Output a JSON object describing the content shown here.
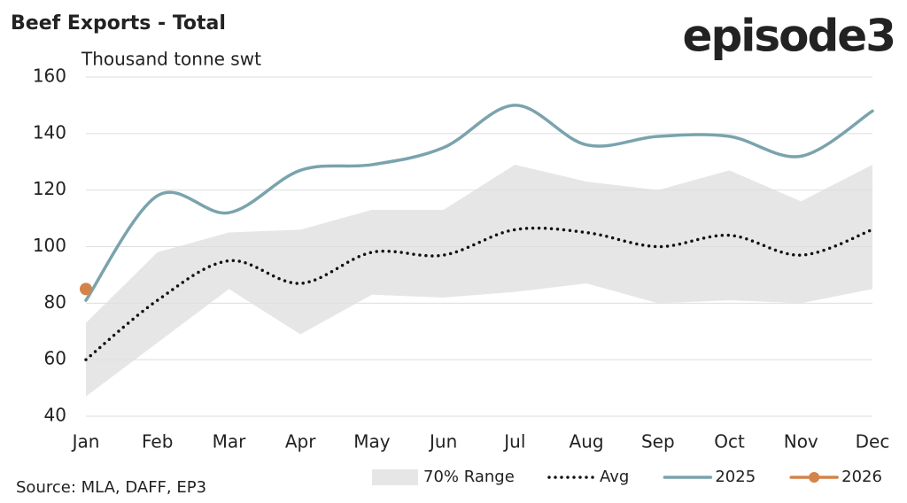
{
  "chart_data": {
    "type": "line",
    "title": "Beef Exports - Total",
    "logo": "episode3",
    "y_label": "Thousand tonne swt",
    "source": "Source: MLA, DAFF, EP3",
    "categories": [
      "Jan",
      "Feb",
      "Mar",
      "Apr",
      "May",
      "Jun",
      "Jul",
      "Aug",
      "Sep",
      "Oct",
      "Nov",
      "Dec"
    ],
    "range": {
      "name": "70% Range",
      "color": "#e6e6e6",
      "lower": [
        47,
        66,
        85,
        69,
        83,
        82,
        84,
        87,
        80,
        81,
        80,
        85
      ],
      "upper": [
        73,
        98,
        105,
        106,
        113,
        113,
        129,
        123,
        120,
        127,
        116,
        129
      ]
    },
    "series": [
      {
        "name": "Avg",
        "color": "#111111",
        "style": "dotted",
        "values": [
          60,
          81,
          95,
          87,
          98,
          97,
          106,
          105,
          100,
          104,
          97,
          106
        ]
      },
      {
        "name": "2025",
        "color": "#7aa3ad",
        "style": "solid",
        "values": [
          81,
          118,
          112,
          127,
          129,
          135,
          150,
          136,
          139,
          139,
          132,
          148
        ]
      },
      {
        "name": "2026",
        "color": "#d4844a",
        "style": "marker",
        "values": [
          85,
          null,
          null,
          null,
          null,
          null,
          null,
          null,
          null,
          null,
          null,
          null
        ]
      }
    ],
    "ylim": [
      40,
      160
    ],
    "yticks": [
      40,
      60,
      80,
      100,
      120,
      140,
      160
    ],
    "grid": true
  }
}
